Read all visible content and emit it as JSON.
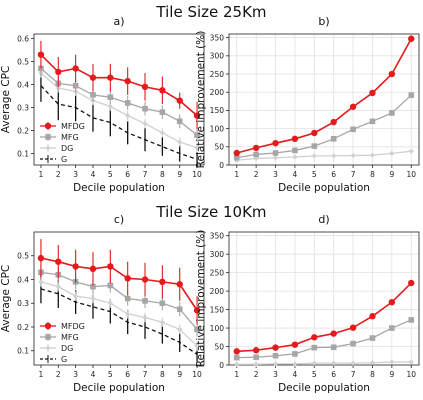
{
  "rows": [
    {
      "title": "Tile Size 25Km"
    },
    {
      "title": "Tile Size 10Km"
    }
  ],
  "colors": {
    "MFDG": "#e41a1c",
    "MFG": "#a6a6a6",
    "DG": "#d0d0d0",
    "G": "#111111"
  },
  "chart_data": [
    {
      "type": "line",
      "panel": "a)",
      "xlabel": "Decile population",
      "ylabel": "Average CPC",
      "x": [
        1,
        2,
        3,
        4,
        5,
        6,
        7,
        8,
        9,
        10
      ],
      "xlim": [
        0.6,
        10.4
      ],
      "ylim": [
        0.05,
        0.62
      ],
      "yticks": [
        0.1,
        0.2,
        0.3,
        0.4,
        0.5,
        0.6
      ],
      "legend": "bottom-left",
      "grid": false,
      "series": [
        {
          "name": "MFDG",
          "values": [
            0.53,
            0.455,
            0.47,
            0.43,
            0.43,
            0.415,
            0.39,
            0.375,
            0.33,
            0.265
          ],
          "err": [
            0.06,
            0.065,
            0.06,
            0.06,
            0.06,
            0.06,
            0.06,
            0.06,
            0.035,
            0.06
          ]
        },
        {
          "name": "MFG",
          "values": [
            0.47,
            0.405,
            0.395,
            0.355,
            0.345,
            0.32,
            0.295,
            0.28,
            0.24,
            0.18
          ],
          "err": [
            0.03,
            0.03,
            0.03,
            0.03,
            0.03,
            0.03,
            0.03,
            0.03,
            0.03,
            0.03
          ]
        },
        {
          "name": "DG",
          "values": [
            0.45,
            0.385,
            0.37,
            0.33,
            0.305,
            0.265,
            0.23,
            0.19,
            0.15,
            0.125
          ],
          "err": [
            0.02,
            0.02,
            0.02,
            0.02,
            0.02,
            0.02,
            0.02,
            0.02,
            0.02,
            0.02
          ]
        },
        {
          "name": "G",
          "values": [
            0.395,
            0.315,
            0.3,
            0.255,
            0.235,
            0.19,
            0.16,
            0.13,
            0.1,
            0.075
          ],
          "err": [
            0.07,
            0.07,
            0.06,
            0.06,
            0.06,
            0.05,
            0.05,
            0.04,
            0.035,
            0.03
          ]
        }
      ]
    },
    {
      "type": "line",
      "panel": "b)",
      "xlabel": "Decile population",
      "ylabel": "Relative improvement (%)",
      "x": [
        1,
        2,
        3,
        4,
        5,
        6,
        7,
        8,
        9,
        10
      ],
      "xlim": [
        0.6,
        10.4
      ],
      "ylim": [
        0,
        360
      ],
      "yticks": [
        0,
        50,
        100,
        150,
        200,
        250,
        300,
        350
      ],
      "grid": true,
      "series": [
        {
          "name": "MFDG",
          "values": [
            33,
            47,
            60,
            72,
            88,
            118,
            160,
            198,
            250,
            347
          ]
        },
        {
          "name": "MFG",
          "values": [
            20,
            29,
            33,
            40,
            52,
            72,
            98,
            120,
            143,
            192
          ]
        },
        {
          "name": "DG",
          "values": [
            13,
            18,
            20,
            22,
            25,
            25,
            26,
            27,
            32,
            38
          ]
        }
      ]
    },
    {
      "type": "line",
      "panel": "c)",
      "xlabel": "Decile population",
      "ylabel": "Average CPC",
      "x": [
        1,
        2,
        3,
        4,
        5,
        6,
        7,
        8,
        9,
        10
      ],
      "xlim": [
        0.6,
        10.4
      ],
      "ylim": [
        0.04,
        0.6
      ],
      "yticks": [
        0.1,
        0.2,
        0.3,
        0.4,
        0.5
      ],
      "legend": "bottom-left",
      "grid": false,
      "series": [
        {
          "name": "MFDG",
          "values": [
            0.49,
            0.475,
            0.455,
            0.445,
            0.455,
            0.405,
            0.4,
            0.39,
            0.38,
            0.27
          ],
          "err": [
            0.08,
            0.07,
            0.07,
            0.07,
            0.07,
            0.07,
            0.07,
            0.07,
            0.07,
            0.06
          ]
        },
        {
          "name": "MFG",
          "values": [
            0.43,
            0.42,
            0.39,
            0.37,
            0.375,
            0.32,
            0.31,
            0.3,
            0.275,
            0.19
          ],
          "err": [
            0.03,
            0.03,
            0.03,
            0.03,
            0.03,
            0.03,
            0.03,
            0.03,
            0.03,
            0.03
          ]
        },
        {
          "name": "DG",
          "values": [
            0.39,
            0.37,
            0.33,
            0.32,
            0.3,
            0.255,
            0.24,
            0.22,
            0.19,
            0.12
          ],
          "err": [
            0.02,
            0.02,
            0.02,
            0.02,
            0.02,
            0.02,
            0.02,
            0.02,
            0.02,
            0.02
          ]
        },
        {
          "name": "G",
          "values": [
            0.36,
            0.34,
            0.305,
            0.285,
            0.265,
            0.22,
            0.2,
            0.17,
            0.135,
            0.085
          ],
          "err": [
            0.06,
            0.06,
            0.05,
            0.05,
            0.05,
            0.05,
            0.05,
            0.04,
            0.04,
            0.03
          ]
        }
      ]
    },
    {
      "type": "line",
      "panel": "d)",
      "xlabel": "Decile population",
      "ylabel": "Relative improvement (%)",
      "x": [
        1,
        2,
        3,
        4,
        5,
        6,
        7,
        8,
        9,
        10
      ],
      "xlim": [
        0.6,
        10.4
      ],
      "ylim": [
        0,
        360
      ],
      "yticks": [
        0,
        50,
        100,
        150,
        200,
        250,
        300,
        350
      ],
      "grid": true,
      "series": [
        {
          "name": "MFDG",
          "values": [
            37,
            40,
            47,
            55,
            75,
            85,
            101,
            132,
            170,
            222
          ]
        },
        {
          "name": "MFG",
          "values": [
            20,
            21,
            25,
            30,
            47,
            48,
            58,
            73,
            100,
            122
          ]
        },
        {
          "name": "DG",
          "values": [
            2,
            2,
            3,
            3,
            5,
            5,
            5,
            6,
            8,
            8
          ]
        }
      ]
    }
  ]
}
